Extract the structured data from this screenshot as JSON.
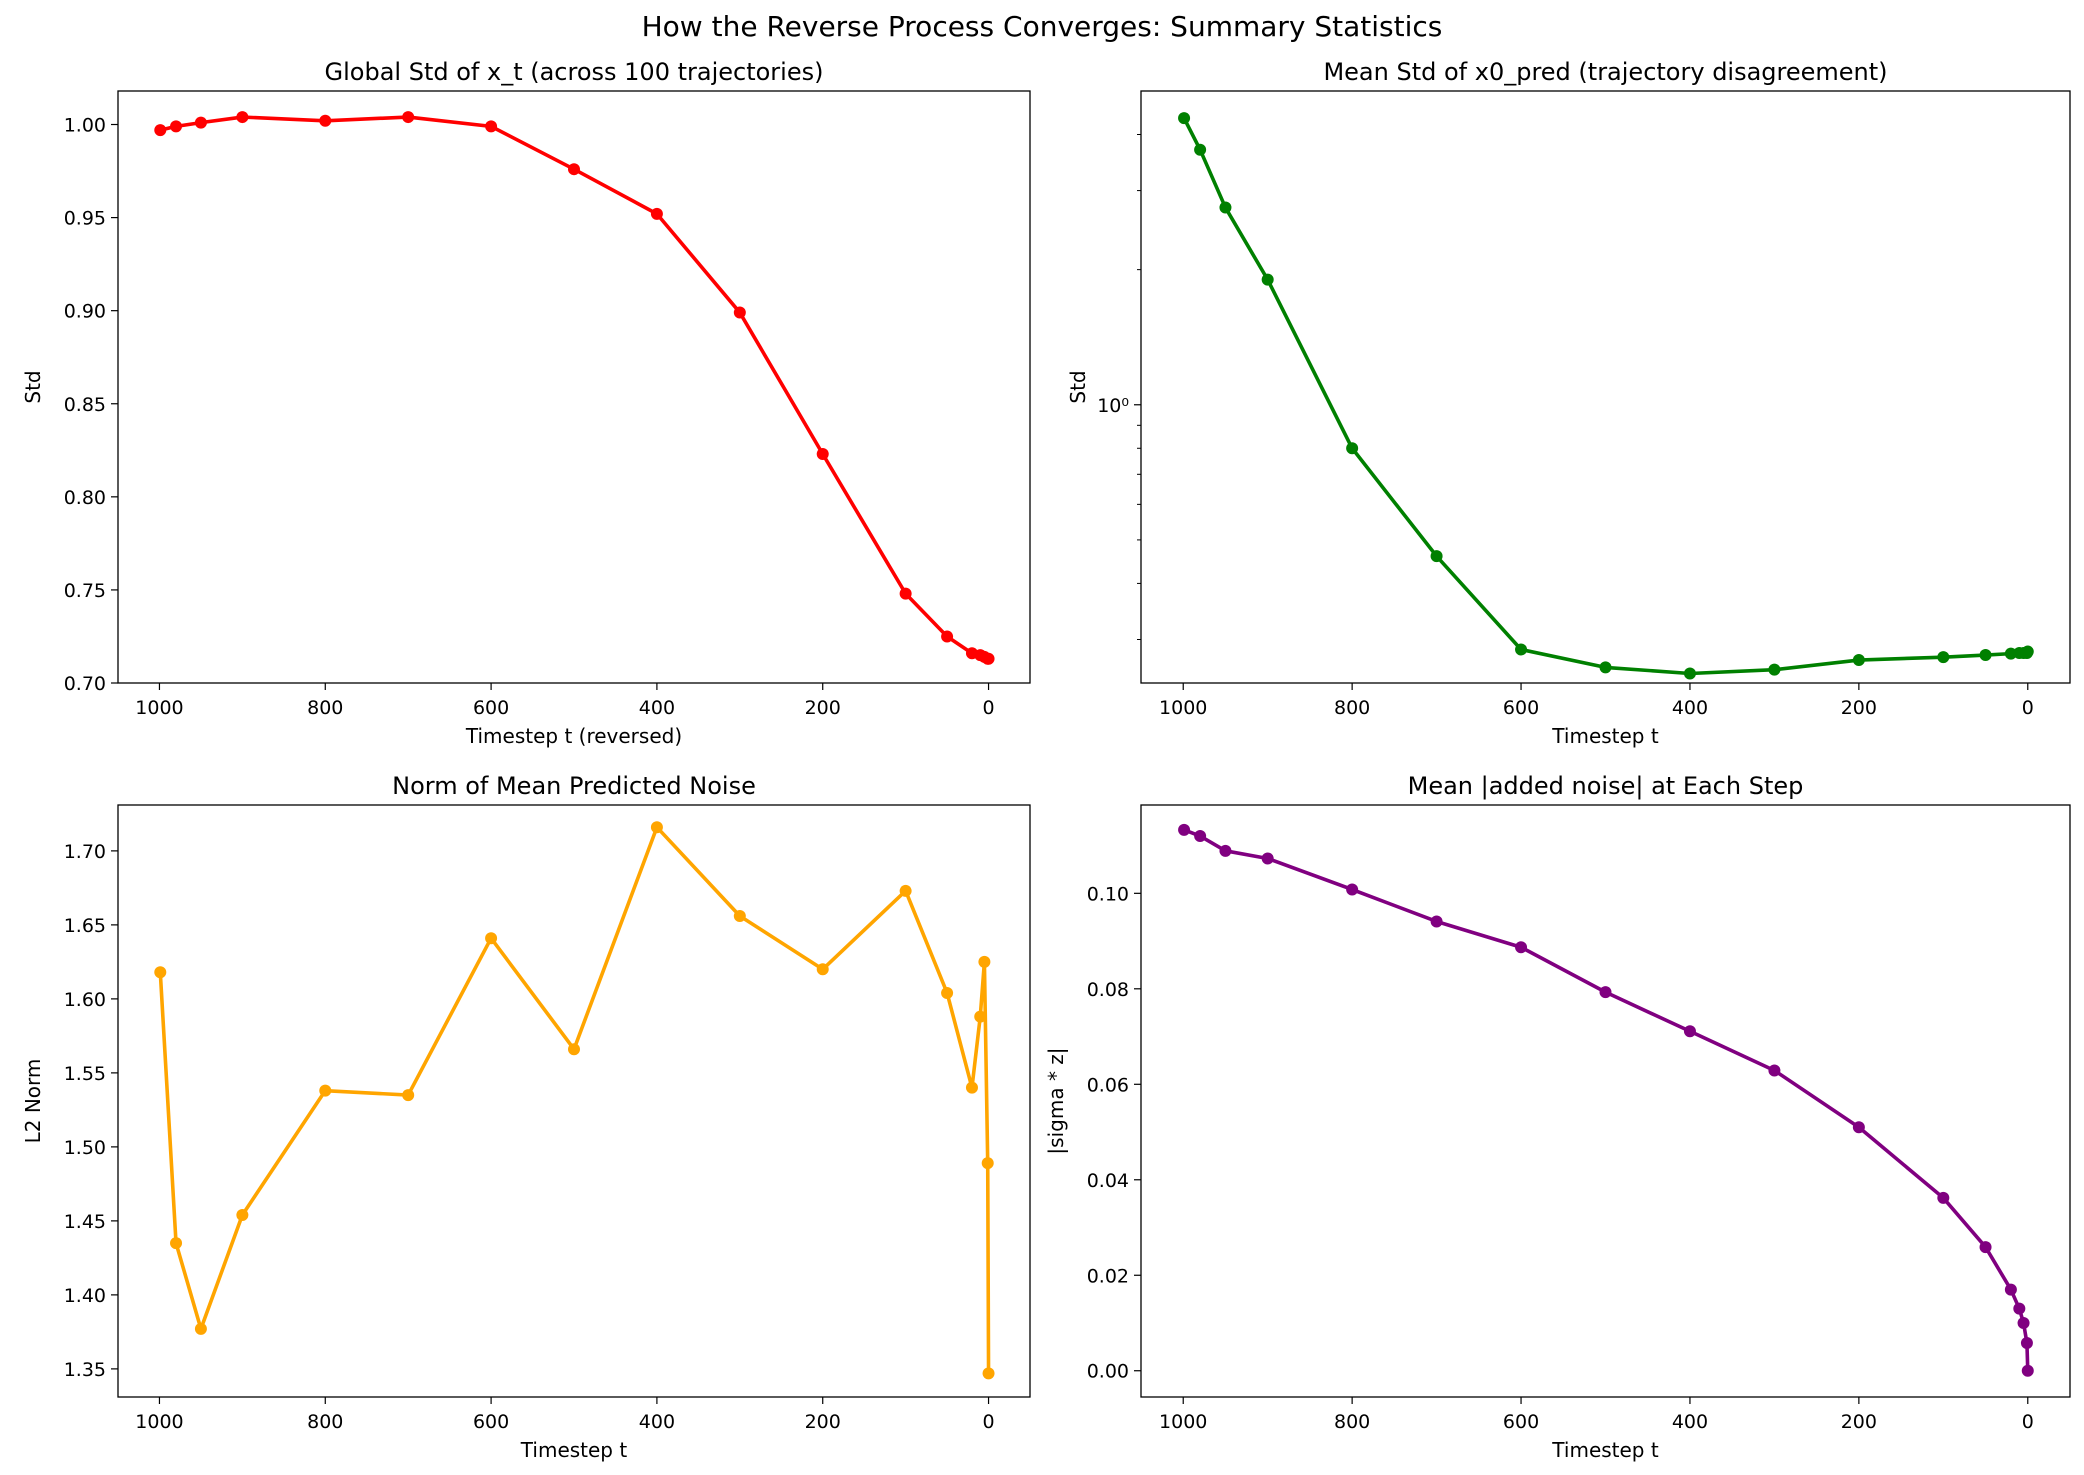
{
  "figure": {
    "suptitle": "How the Reverse Process Converges: Summary Statistics"
  },
  "chart_data": [
    {
      "type": "line",
      "title": "Global Std of x_t (across 100 trajectories)",
      "xlabel": "Timestep t (reversed)",
      "ylabel": "Std",
      "x_reversed": true,
      "yscale": "linear",
      "xlim": [
        1050,
        -50
      ],
      "ylim": [
        0.7,
        1.018
      ],
      "xticks": [
        1000,
        800,
        600,
        400,
        200,
        0
      ],
      "xtick_labels": [
        "1000",
        "800",
        "600",
        "400",
        "200",
        "0"
      ],
      "yticks": [
        0.7,
        0.75,
        0.8,
        0.85,
        0.9,
        0.95,
        1.0
      ],
      "ytick_labels": [
        "0.70",
        "0.75",
        "0.80",
        "0.85",
        "0.90",
        "0.95",
        "1.00"
      ],
      "color": "#ff0000",
      "grid": false,
      "series": [
        {
          "x": [
            999,
            980,
            950,
            900,
            800,
            700,
            600,
            500,
            400,
            300,
            200,
            100,
            50,
            20,
            10,
            5,
            1,
            0
          ],
          "y": [
            0.997,
            0.999,
            1.001,
            1.004,
            1.002,
            1.004,
            0.999,
            0.976,
            0.952,
            0.899,
            0.823,
            0.748,
            0.725,
            0.716,
            0.715,
            0.714,
            0.713,
            0.713
          ]
        }
      ]
    },
    {
      "type": "line",
      "title": "Mean Std of x0_pred (trajectory disagreement)",
      "xlabel": "Timestep t",
      "ylabel": "Std",
      "x_reversed": true,
      "yscale": "log",
      "xlim": [
        1050,
        -50
      ],
      "ylim": [
        0.24,
        5.0
      ],
      "xticks": [
        1000,
        800,
        600,
        400,
        200,
        0
      ],
      "xtick_labels": [
        "1000",
        "800",
        "600",
        "400",
        "200",
        "0"
      ],
      "yticks": [
        1.0
      ],
      "ytick_labels": [
        "10⁰"
      ],
      "color": "#008000",
      "grid": false,
      "series": [
        {
          "x": [
            999,
            980,
            950,
            900,
            800,
            700,
            600,
            500,
            400,
            300,
            200,
            100,
            50,
            20,
            10,
            5,
            1,
            0
          ],
          "y": [
            4.35,
            3.7,
            2.75,
            1.9,
            0.8,
            0.46,
            0.285,
            0.26,
            0.252,
            0.257,
            0.27,
            0.274,
            0.277,
            0.279,
            0.28,
            0.28,
            0.28,
            0.282
          ]
        }
      ]
    },
    {
      "type": "line",
      "title": "Norm of Mean Predicted Noise",
      "xlabel": "Timestep t",
      "ylabel": "L2 Norm",
      "x_reversed": true,
      "yscale": "linear",
      "xlim": [
        1050,
        -50
      ],
      "ylim": [
        1.331,
        1.731
      ],
      "xticks": [
        1000,
        800,
        600,
        400,
        200,
        0
      ],
      "xtick_labels": [
        "1000",
        "800",
        "600",
        "400",
        "200",
        "0"
      ],
      "yticks": [
        1.35,
        1.4,
        1.45,
        1.5,
        1.55,
        1.6,
        1.65,
        1.7
      ],
      "ytick_labels": [
        "1.35",
        "1.40",
        "1.45",
        "1.50",
        "1.55",
        "1.60",
        "1.65",
        "1.70"
      ],
      "color": "#ffa500",
      "grid": false,
      "series": [
        {
          "x": [
            999,
            980,
            950,
            900,
            800,
            700,
            600,
            500,
            400,
            300,
            200,
            100,
            50,
            20,
            10,
            5,
            1,
            0
          ],
          "y": [
            1.618,
            1.435,
            1.377,
            1.454,
            1.538,
            1.535,
            1.641,
            1.566,
            1.716,
            1.656,
            1.62,
            1.673,
            1.604,
            1.54,
            1.588,
            1.625,
            1.489,
            1.347
          ]
        }
      ]
    },
    {
      "type": "line",
      "title": "Mean |added noise| at Each Step",
      "xlabel": "Timestep t",
      "ylabel": "|sigma * z|",
      "x_reversed": true,
      "yscale": "linear",
      "xlim": [
        1050,
        -50
      ],
      "ylim": [
        -0.0055,
        0.1185
      ],
      "xticks": [
        1000,
        800,
        600,
        400,
        200,
        0
      ],
      "xtick_labels": [
        "1000",
        "800",
        "600",
        "400",
        "200",
        "0"
      ],
      "yticks": [
        0.0,
        0.02,
        0.04,
        0.06,
        0.08,
        0.1
      ],
      "ytick_labels": [
        "0.00",
        "0.02",
        "0.04",
        "0.06",
        "0.08",
        "0.10"
      ],
      "color": "#800080",
      "grid": false,
      "series": [
        {
          "x": [
            999,
            980,
            950,
            900,
            800,
            700,
            600,
            500,
            400,
            300,
            200,
            100,
            50,
            20,
            10,
            5,
            1,
            0
          ],
          "y": [
            0.1133,
            0.112,
            0.1089,
            0.1073,
            0.1008,
            0.0941,
            0.0887,
            0.0793,
            0.0711,
            0.0629,
            0.051,
            0.0362,
            0.0259,
            0.017,
            0.013,
            0.01,
            0.0058,
            0.0
          ]
        }
      ]
    }
  ]
}
